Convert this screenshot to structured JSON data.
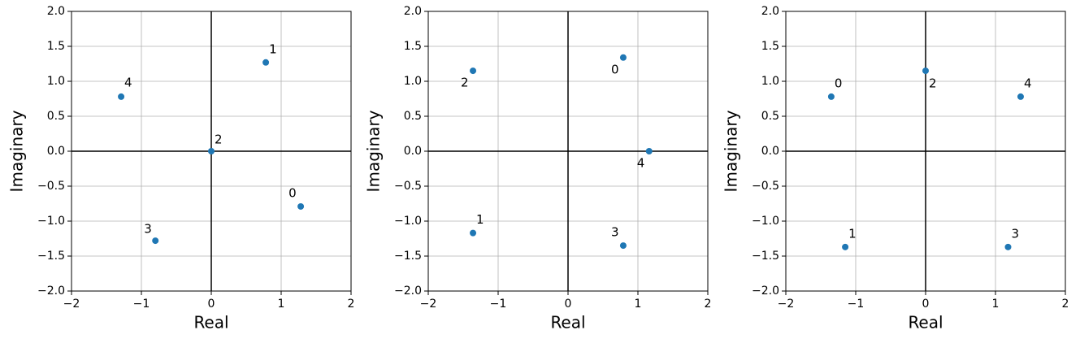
{
  "chart_data": [
    {
      "type": "scatter",
      "xlabel": "Real",
      "ylabel": "Imaginary",
      "color": "#1f77b4",
      "grid": true,
      "point_labels": [
        "0",
        "1",
        "2",
        "3",
        "4"
      ],
      "x": [
        1.28,
        0.78,
        0,
        -0.8,
        -1.29
      ],
      "values": [
        -0.79,
        1.27,
        0,
        -1.28,
        0.78
      ],
      "xlim": [
        -2,
        2
      ],
      "ylim": [
        -2,
        2
      ],
      "xticks": [
        {
          "value": -2,
          "label": "−2"
        },
        {
          "value": -1,
          "label": "−1"
        },
        0,
        1,
        2
      ],
      "yticks": [
        {
          "value": -2,
          "label": "−2.0"
        },
        {
          "value": -1.5,
          "label": "−1.5"
        },
        {
          "value": -1,
          "label": "−1.0"
        },
        {
          "value": -0.5,
          "label": "−0.5"
        },
        {
          "value": 0,
          "label": "0.0"
        },
        0.5,
        {
          "value": 1,
          "label": "1.0"
        },
        1.5,
        {
          "value": 2,
          "label": "2.0"
        }
      ]
    },
    {
      "type": "scatter",
      "xlabel": "Real",
      "ylabel": "Imaginary",
      "color": "#1f77b4",
      "grid": true,
      "point_labels": [
        "0",
        "1",
        "2",
        "3",
        "4"
      ],
      "x": [
        0.79,
        -1.36,
        -1.36,
        0.79,
        1.16
      ],
      "values": [
        1.34,
        -1.17,
        1.15,
        -1.35,
        0
      ],
      "xlim": [
        -2,
        2
      ],
      "ylim": [
        -2,
        2
      ],
      "xticks": [
        {
          "value": -2,
          "label": "−2"
        },
        {
          "value": -1,
          "label": "−1"
        },
        0,
        1,
        2
      ],
      "yticks": [
        {
          "value": -2,
          "label": "−2.0"
        },
        {
          "value": -1.5,
          "label": "−1.5"
        },
        {
          "value": -1,
          "label": "−1.0"
        },
        {
          "value": -0.5,
          "label": "−0.5"
        },
        {
          "value": 0,
          "label": "0.0"
        },
        0.5,
        {
          "value": 1,
          "label": "1.0"
        },
        1.5,
        {
          "value": 2,
          "label": "2.0"
        }
      ]
    },
    {
      "type": "scatter",
      "xlabel": "Real",
      "ylabel": "Imaginary",
      "color": "#1f77b4",
      "grid": true,
      "point_labels": [
        "0",
        "1",
        "2",
        "3",
        "4"
      ],
      "x": [
        -1.35,
        -1.15,
        0,
        1.18,
        1.36
      ],
      "values": [
        0.78,
        -1.37,
        1.15,
        -1.37,
        0.78
      ],
      "xlim": [
        -2,
        2
      ],
      "ylim": [
        -2,
        2
      ],
      "xticks": [
        {
          "value": -2,
          "label": "−2"
        },
        {
          "value": -1,
          "label": "−1"
        },
        0,
        1,
        2
      ],
      "yticks": [
        {
          "value": -2,
          "label": "−2.0"
        },
        {
          "value": -1.5,
          "label": "−1.5"
        },
        {
          "value": -1,
          "label": "−1.0"
        },
        {
          "value": -0.5,
          "label": "−0.5"
        },
        {
          "value": 0,
          "label": "0.0"
        },
        0.5,
        {
          "value": 1,
          "label": "1.0"
        },
        1.5,
        {
          "value": 2,
          "label": "2.0"
        }
      ]
    }
  ]
}
